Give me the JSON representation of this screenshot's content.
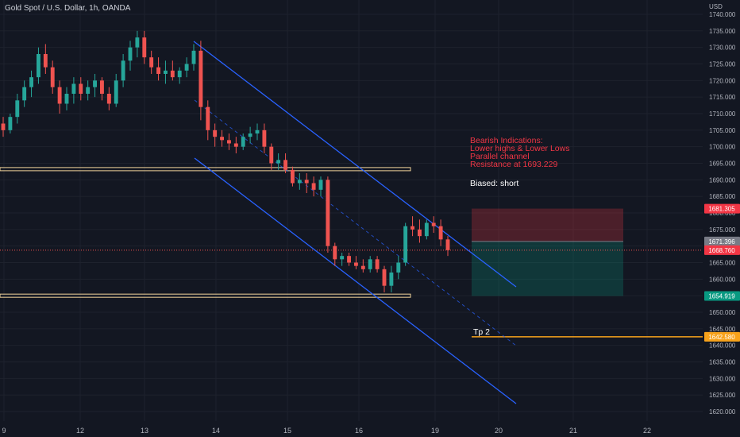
{
  "title": "Gold Spot / U.S. Dollar, 1h, OANDA",
  "currency": "USD",
  "annotations": {
    "bearish_lines": [
      "Bearish Indications:",
      "Lower highs & Lower Lows",
      "Parallel channel",
      "Resistance at 1693.229"
    ],
    "bias": "Biased: short",
    "tp_label": "Tp 2"
  },
  "colors": {
    "background": "#131722",
    "up": "#26a69a",
    "down": "#ef5350",
    "channel": "#2962ff",
    "level": "#f2d49b",
    "stop_zone": "#f23645",
    "target_zone": "#089981",
    "tp_line": "#f7a21b"
  },
  "chart_data": {
    "type": "candlestick",
    "symbol": "Gold Spot / U.S. Dollar",
    "interval": "1h",
    "source": "OANDA",
    "x_tick_labels": [
      "9",
      "12",
      "13",
      "14",
      "15",
      "16",
      "19",
      "20",
      "21",
      "22"
    ],
    "y_tick_values": [
      1620,
      1625,
      1630,
      1635,
      1640,
      1645,
      1650,
      1655,
      1660,
      1665,
      1670,
      1675,
      1680,
      1685,
      1690,
      1695,
      1700,
      1705,
      1710,
      1715,
      1720,
      1725,
      1730,
      1735,
      1740
    ],
    "y_tick_labels": [
      "1620.000",
      "1625.000",
      "1630.000",
      "1635.000",
      "1640.000",
      "1645.000",
      "1650.000",
      "1655.000",
      "1660.000",
      "1665.000",
      "1670.000",
      "1675.000",
      "1680.000",
      "1685.000",
      "1690.000",
      "1695.000",
      "1700.000",
      "1705.000",
      "1710.000",
      "1715.000",
      "1720.000",
      "1725.000",
      "1730.000",
      "1735.000",
      "1740.000"
    ],
    "ylim": [
      1618,
      1742
    ],
    "price_markers": [
      {
        "value": 1681.305,
        "label": "1681.305",
        "color": "#f23645"
      },
      {
        "value": 1671.396,
        "label": "1671.396",
        "color": "#787b86"
      },
      {
        "value": 1668.76,
        "label": "1668.760",
        "color": "#f23645"
      },
      {
        "value": 1654.919,
        "label": "1654.919",
        "color": "#089981"
      },
      {
        "value": 1642.58,
        "label": "1642.580",
        "color": "#f7a21b"
      }
    ],
    "current_price": 1668.76,
    "horizontal_levels": [
      1693.229,
      1655.0
    ],
    "position": {
      "stop": 1681.305,
      "entry": 1671.396,
      "target": 1654.919
    },
    "take_profit": 1642.58,
    "candles": [
      [
        1707,
        1709,
        1703,
        1705
      ],
      [
        1705,
        1710,
        1704,
        1709
      ],
      [
        1709,
        1716,
        1707,
        1714
      ],
      [
        1714,
        1720,
        1712,
        1718
      ],
      [
        1718,
        1723,
        1715,
        1721
      ],
      [
        1721,
        1730,
        1719,
        1728
      ],
      [
        1728,
        1731,
        1722,
        1724
      ],
      [
        1724,
        1726,
        1716,
        1718
      ],
      [
        1718,
        1720,
        1710,
        1713
      ],
      [
        1713,
        1718,
        1711,
        1716
      ],
      [
        1716,
        1721,
        1713,
        1719
      ],
      [
        1719,
        1721,
        1714,
        1716
      ],
      [
        1716,
        1720,
        1714,
        1718
      ],
      [
        1718,
        1722,
        1715,
        1720
      ],
      [
        1720,
        1721,
        1714,
        1716
      ],
      [
        1716,
        1718,
        1711,
        1713
      ],
      [
        1713,
        1722,
        1712,
        1720
      ],
      [
        1720,
        1728,
        1718,
        1726
      ],
      [
        1726,
        1732,
        1723,
        1730
      ],
      [
        1730,
        1735,
        1727,
        1733
      ],
      [
        1733,
        1735,
        1725,
        1727
      ],
      [
        1727,
        1729,
        1722,
        1724
      ],
      [
        1724,
        1727,
        1720,
        1722
      ],
      [
        1722,
        1726,
        1719,
        1723
      ],
      [
        1723,
        1726,
        1720,
        1721
      ],
      [
        1721,
        1724,
        1719,
        1723
      ],
      [
        1723,
        1727,
        1721,
        1725
      ],
      [
        1725,
        1731,
        1723,
        1729
      ],
      [
        1729,
        1732,
        1708,
        1712
      ],
      [
        1712,
        1714,
        1702,
        1705
      ],
      [
        1705,
        1707,
        1700,
        1703
      ],
      [
        1703,
        1705,
        1700,
        1702
      ],
      [
        1702,
        1704,
        1699,
        1701
      ],
      [
        1701,
        1703,
        1698,
        1700
      ],
      [
        1700,
        1704,
        1699,
        1703
      ],
      [
        1703,
        1706,
        1701,
        1704
      ],
      [
        1704,
        1707,
        1702,
        1705
      ],
      [
        1705,
        1707,
        1698,
        1700
      ],
      [
        1700,
        1701,
        1693,
        1695
      ],
      [
        1695,
        1698,
        1693,
        1696
      ],
      [
        1696,
        1698,
        1692,
        1693
      ],
      [
        1693,
        1694,
        1688,
        1689
      ],
      [
        1689,
        1692,
        1687,
        1690
      ],
      [
        1690,
        1692,
        1686,
        1689
      ],
      [
        1689,
        1691,
        1685,
        1687
      ],
      [
        1687,
        1691,
        1685,
        1690
      ],
      [
        1690,
        1691,
        1668,
        1670
      ],
      [
        1670,
        1671,
        1664,
        1666
      ],
      [
        1666,
        1668,
        1664,
        1667
      ],
      [
        1667,
        1668,
        1664,
        1665
      ],
      [
        1665,
        1667,
        1663,
        1664
      ],
      [
        1664,
        1666,
        1662,
        1663
      ],
      [
        1663,
        1667,
        1662,
        1666
      ],
      [
        1666,
        1667,
        1662,
        1663
      ],
      [
        1663,
        1664,
        1656,
        1658
      ],
      [
        1658,
        1664,
        1656,
        1662
      ],
      [
        1662,
        1667,
        1660,
        1665
      ],
      [
        1665,
        1677,
        1664,
        1676
      ],
      [
        1676,
        1679,
        1673,
        1675
      ],
      [
        1675,
        1678,
        1671,
        1673
      ],
      [
        1673,
        1678,
        1672,
        1677
      ],
      [
        1677,
        1679,
        1674,
        1676
      ],
      [
        1676,
        1678,
        1670,
        1672
      ],
      [
        1672,
        1673,
        1667,
        1668.76
      ]
    ]
  }
}
